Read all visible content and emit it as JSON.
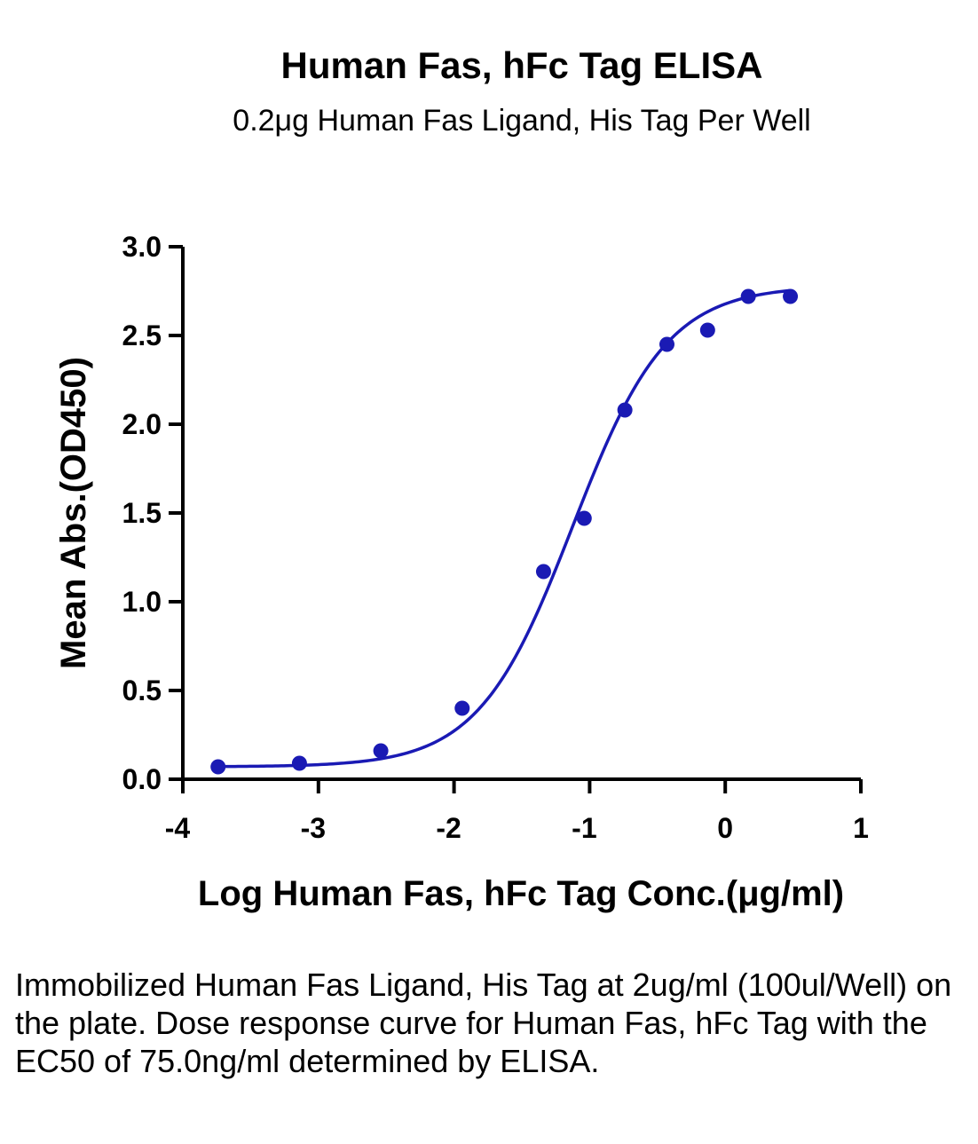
{
  "chart_data": {
    "type": "scatter",
    "title": "Human Fas, hFc Tag ELISA",
    "subtitle": "0.2μg Human Fas Ligand, His Tag Per Well",
    "xlabel": "Log Human Fas, hFc Tag Conc.(μg/ml)",
    "ylabel": "Mean Abs.(OD450)",
    "xlim": [
      -4,
      1
    ],
    "ylim": [
      0,
      3
    ],
    "x_ticks": [
      "-4",
      "-3",
      "-2",
      "-1",
      "0",
      "1"
    ],
    "y_ticks": [
      "0.0",
      "0.5",
      "1.0",
      "1.5",
      "2.0",
      "2.5",
      "3.0"
    ],
    "series": [
      {
        "color": "#1a1ab4",
        "points": [
          {
            "x": -3.74,
            "y": 0.07
          },
          {
            "x": -3.14,
            "y": 0.09
          },
          {
            "x": -2.54,
            "y": 0.16
          },
          {
            "x": -1.94,
            "y": 0.4
          },
          {
            "x": -1.34,
            "y": 1.17
          },
          {
            "x": -1.04,
            "y": 1.47
          },
          {
            "x": -0.74,
            "y": 2.08
          },
          {
            "x": -0.43,
            "y": 2.45
          },
          {
            "x": -0.13,
            "y": 2.53
          },
          {
            "x": 0.17,
            "y": 2.72
          },
          {
            "x": 0.48,
            "y": 2.72
          }
        ]
      }
    ],
    "fit": {
      "type": "4PL",
      "bottom": 0.07,
      "top": 2.78,
      "logEC50": -1.125,
      "hill": 1.25,
      "color": "#1a1ab4"
    }
  },
  "caption": "Immobilized Human Fas Ligand, His Tag at 2ug/ml (100ul/Well) on the plate. Dose response curve for Human Fas, hFc Tag with the EC50 of 75.0ng/ml determined by ELISA."
}
